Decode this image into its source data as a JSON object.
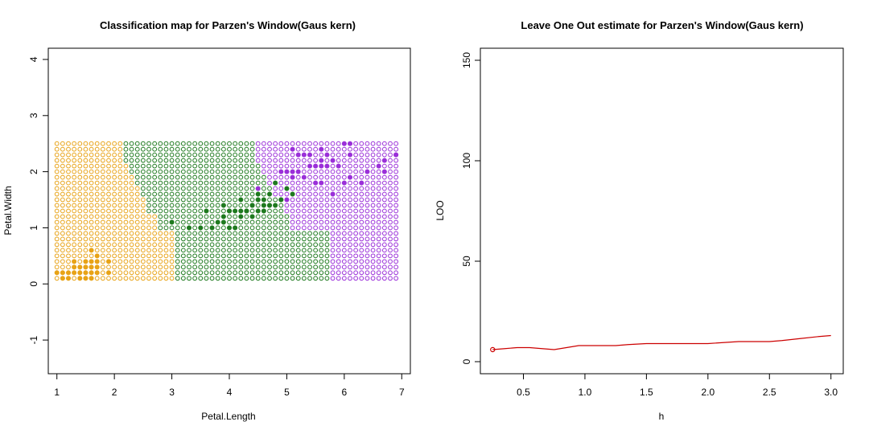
{
  "chart_data": [
    {
      "type": "scatter",
      "title": "Classification map for Parzen's Window(Gaus kern)",
      "xlabel": "Petal.Length",
      "ylabel": "Petal.Width",
      "xlim": [
        0.85,
        7.15
      ],
      "ylim": [
        -1.6,
        4.2
      ],
      "x_ticks": [
        "1",
        "2",
        "3",
        "4",
        "5",
        "6",
        "7"
      ],
      "y_ticks": [
        "-1",
        "0",
        "1",
        "2",
        "3",
        "4"
      ],
      "grid": false,
      "colors": {
        "setosa": "#e8a317",
        "versicolor": "#1f7a1f",
        "virginica": "#9b30d9"
      },
      "grid_points": {
        "x_range": [
          1.0,
          6.9,
          0.1
        ],
        "y_range": [
          0.1,
          2.5,
          0.1
        ],
        "boundaries": [
          {
            "y_max": 0.9,
            "setosa_until": 3.0,
            "versicolor_until": 5.7
          },
          {
            "y_max": 1.2,
            "setosa_until": 2.7,
            "versicolor_until": 5.0
          },
          {
            "y_max": 1.5,
            "setosa_until": 2.5,
            "versicolor_until": 4.9
          },
          {
            "y_max": 1.7,
            "setosa_until": 2.4,
            "versicolor_until": 4.7
          },
          {
            "y_max": 1.9,
            "setosa_until": 2.3,
            "versicolor_until": 4.6
          },
          {
            "y_max": 2.1,
            "setosa_until": 2.2,
            "versicolor_until": 4.5
          },
          {
            "y_max": 2.3,
            "setosa_until": 2.1,
            "versicolor_until": 4.4
          },
          {
            "y_max": 2.5,
            "setosa_until": 2.1,
            "versicolor_until": 4.4
          }
        ]
      },
      "training_points": [
        {
          "x": 1.4,
          "y": 0.2,
          "class": "setosa"
        },
        {
          "x": 1.3,
          "y": 0.2,
          "class": "setosa"
        },
        {
          "x": 1.5,
          "y": 0.2,
          "class": "setosa"
        },
        {
          "x": 1.7,
          "y": 0.4,
          "class": "setosa"
        },
        {
          "x": 1.4,
          "y": 0.3,
          "class": "setosa"
        },
        {
          "x": 1.5,
          "y": 0.1,
          "class": "setosa"
        },
        {
          "x": 1.1,
          "y": 0.1,
          "class": "setosa"
        },
        {
          "x": 1.2,
          "y": 0.2,
          "class": "setosa"
        },
        {
          "x": 1.0,
          "y": 0.2,
          "class": "setosa"
        },
        {
          "x": 1.7,
          "y": 0.5,
          "class": "setosa"
        },
        {
          "x": 1.9,
          "y": 0.2,
          "class": "setosa"
        },
        {
          "x": 1.6,
          "y": 0.2,
          "class": "setosa"
        },
        {
          "x": 1.6,
          "y": 0.4,
          "class": "setosa"
        },
        {
          "x": 1.5,
          "y": 0.4,
          "class": "setosa"
        },
        {
          "x": 1.3,
          "y": 0.3,
          "class": "setosa"
        },
        {
          "x": 1.9,
          "y": 0.4,
          "class": "setosa"
        },
        {
          "x": 1.6,
          "y": 0.6,
          "class": "setosa"
        },
        {
          "x": 1.6,
          "y": 0.1,
          "class": "setosa"
        },
        {
          "x": 1.4,
          "y": 0.1,
          "class": "setosa"
        },
        {
          "x": 1.5,
          "y": 0.3,
          "class": "setosa"
        },
        {
          "x": 1.7,
          "y": 0.3,
          "class": "setosa"
        },
        {
          "x": 1.3,
          "y": 0.4,
          "class": "setosa"
        },
        {
          "x": 1.2,
          "y": 0.1,
          "class": "setosa"
        },
        {
          "x": 1.7,
          "y": 0.2,
          "class": "setosa"
        },
        {
          "x": 1.6,
          "y": 0.3,
          "class": "setosa"
        },
        {
          "x": 1.1,
          "y": 0.2,
          "class": "setosa"
        },
        {
          "x": 4.7,
          "y": 1.4,
          "class": "versicolor"
        },
        {
          "x": 4.5,
          "y": 1.5,
          "class": "versicolor"
        },
        {
          "x": 4.9,
          "y": 1.5,
          "class": "versicolor"
        },
        {
          "x": 4.0,
          "y": 1.3,
          "class": "versicolor"
        },
        {
          "x": 4.6,
          "y": 1.5,
          "class": "versicolor"
        },
        {
          "x": 4.5,
          "y": 1.3,
          "class": "versicolor"
        },
        {
          "x": 4.7,
          "y": 1.6,
          "class": "versicolor"
        },
        {
          "x": 3.3,
          "y": 1.0,
          "class": "versicolor"
        },
        {
          "x": 4.6,
          "y": 1.3,
          "class": "versicolor"
        },
        {
          "x": 3.9,
          "y": 1.4,
          "class": "versicolor"
        },
        {
          "x": 3.5,
          "y": 1.0,
          "class": "versicolor"
        },
        {
          "x": 4.2,
          "y": 1.5,
          "class": "versicolor"
        },
        {
          "x": 4.0,
          "y": 1.0,
          "class": "versicolor"
        },
        {
          "x": 4.7,
          "y": 1.4,
          "class": "versicolor"
        },
        {
          "x": 3.6,
          "y": 1.3,
          "class": "versicolor"
        },
        {
          "x": 4.4,
          "y": 1.4,
          "class": "versicolor"
        },
        {
          "x": 4.1,
          "y": 1.0,
          "class": "versicolor"
        },
        {
          "x": 4.5,
          "y": 1.5,
          "class": "versicolor"
        },
        {
          "x": 3.9,
          "y": 1.1,
          "class": "versicolor"
        },
        {
          "x": 4.8,
          "y": 1.8,
          "class": "versicolor"
        },
        {
          "x": 4.0,
          "y": 1.3,
          "class": "versicolor"
        },
        {
          "x": 4.9,
          "y": 1.5,
          "class": "versicolor"
        },
        {
          "x": 4.3,
          "y": 1.3,
          "class": "versicolor"
        },
        {
          "x": 4.4,
          "y": 1.4,
          "class": "versicolor"
        },
        {
          "x": 4.8,
          "y": 1.4,
          "class": "versicolor"
        },
        {
          "x": 5.0,
          "y": 1.7,
          "class": "versicolor"
        },
        {
          "x": 3.8,
          "y": 1.1,
          "class": "versicolor"
        },
        {
          "x": 3.7,
          "y": 1.0,
          "class": "versicolor"
        },
        {
          "x": 3.9,
          "y": 1.2,
          "class": "versicolor"
        },
        {
          "x": 5.1,
          "y": 1.6,
          "class": "versicolor"
        },
        {
          "x": 4.1,
          "y": 1.3,
          "class": "versicolor"
        },
        {
          "x": 4.4,
          "y": 1.2,
          "class": "versicolor"
        },
        {
          "x": 3.0,
          "y": 1.1,
          "class": "versicolor"
        },
        {
          "x": 4.2,
          "y": 1.3,
          "class": "versicolor"
        },
        {
          "x": 4.2,
          "y": 1.2,
          "class": "versicolor"
        },
        {
          "x": 4.3,
          "y": 1.3,
          "class": "versicolor"
        },
        {
          "x": 4.6,
          "y": 1.4,
          "class": "versicolor"
        },
        {
          "x": 4.5,
          "y": 1.6,
          "class": "versicolor"
        },
        {
          "x": 6.0,
          "y": 2.5,
          "class": "virginica"
        },
        {
          "x": 5.1,
          "y": 1.9,
          "class": "virginica"
        },
        {
          "x": 5.9,
          "y": 2.1,
          "class": "virginica"
        },
        {
          "x": 5.6,
          "y": 1.8,
          "class": "virginica"
        },
        {
          "x": 5.8,
          "y": 2.2,
          "class": "virginica"
        },
        {
          "x": 6.6,
          "y": 2.1,
          "class": "virginica"
        },
        {
          "x": 4.5,
          "y": 1.7,
          "class": "virginica"
        },
        {
          "x": 6.3,
          "y": 1.8,
          "class": "virginica"
        },
        {
          "x": 6.1,
          "y": 2.5,
          "class": "virginica"
        },
        {
          "x": 5.1,
          "y": 2.0,
          "class": "virginica"
        },
        {
          "x": 5.3,
          "y": 1.9,
          "class": "virginica"
        },
        {
          "x": 5.5,
          "y": 2.1,
          "class": "virginica"
        },
        {
          "x": 5.0,
          "y": 2.0,
          "class": "virginica"
        },
        {
          "x": 5.1,
          "y": 2.4,
          "class": "virginica"
        },
        {
          "x": 5.3,
          "y": 2.3,
          "class": "virginica"
        },
        {
          "x": 6.7,
          "y": 2.2,
          "class": "virginica"
        },
        {
          "x": 6.9,
          "y": 2.3,
          "class": "virginica"
        },
        {
          "x": 5.0,
          "y": 1.5,
          "class": "virginica"
        },
        {
          "x": 5.7,
          "y": 2.3,
          "class": "virginica"
        },
        {
          "x": 4.9,
          "y": 2.0,
          "class": "virginica"
        },
        {
          "x": 6.7,
          "y": 2.0,
          "class": "virginica"
        },
        {
          "x": 5.7,
          "y": 2.1,
          "class": "virginica"
        },
        {
          "x": 6.0,
          "y": 1.8,
          "class": "virginica"
        },
        {
          "x": 5.6,
          "y": 2.2,
          "class": "virginica"
        },
        {
          "x": 5.8,
          "y": 1.6,
          "class": "virginica"
        },
        {
          "x": 6.4,
          "y": 2.0,
          "class": "virginica"
        },
        {
          "x": 5.6,
          "y": 2.1,
          "class": "virginica"
        },
        {
          "x": 6.1,
          "y": 2.3,
          "class": "virginica"
        },
        {
          "x": 5.6,
          "y": 2.4,
          "class": "virginica"
        },
        {
          "x": 5.5,
          "y": 1.8,
          "class": "virginica"
        },
        {
          "x": 5.4,
          "y": 2.1,
          "class": "virginica"
        },
        {
          "x": 5.2,
          "y": 2.3,
          "class": "virginica"
        },
        {
          "x": 5.2,
          "y": 2.0,
          "class": "virginica"
        },
        {
          "x": 5.4,
          "y": 2.3,
          "class": "virginica"
        },
        {
          "x": 6.1,
          "y": 1.9,
          "class": "virginica"
        },
        {
          "x": 6.9,
          "y": 2.3,
          "class": "virginica"
        }
      ]
    },
    {
      "type": "line",
      "title": "Leave One Out estimate for Parzen's Window(Gaus kern)",
      "xlabel": "h",
      "ylabel": "LOO",
      "xlim": [
        0.15,
        3.1
      ],
      "ylim": [
        -6,
        156
      ],
      "x_ticks": [
        "0.5",
        "1.0",
        "1.5",
        "2.0",
        "2.5",
        "3.0"
      ],
      "y_ticks": [
        "0",
        "50",
        "100",
        "150"
      ],
      "grid": false,
      "line_color": "#cc0000",
      "series": [
        {
          "x": [
            0.25,
            0.35,
            0.45,
            0.55,
            0.65,
            0.75,
            0.85,
            0.95,
            1.05,
            1.15,
            1.25,
            1.35,
            1.5,
            1.75,
            2.0,
            2.25,
            2.5,
            2.6,
            2.75,
            2.9,
            3.0
          ],
          "y": [
            6,
            6.5,
            7,
            7,
            6.5,
            6,
            7,
            8,
            8,
            8,
            8,
            8.5,
            9,
            9,
            9,
            10,
            10,
            10.5,
            11.5,
            12.5,
            13
          ]
        }
      ],
      "first_point_marker": "open-circle"
    }
  ]
}
